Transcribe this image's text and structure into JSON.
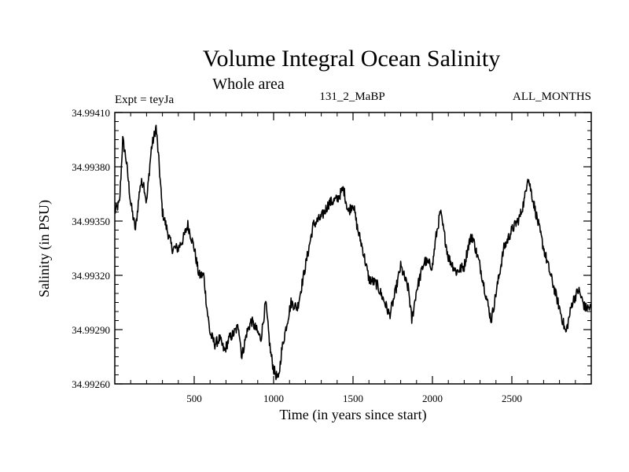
{
  "chart_data": {
    "type": "line",
    "title": "Volume Integral Ocean Salinity",
    "subtitle": "Whole area",
    "experiment": "Expt = teyJa",
    "run_label": "131_2_MaBP",
    "period_label": "ALL_MONTHS",
    "xlabel": "Time (in years since start)",
    "ylabel": "Salinity (in PSU)",
    "xlim": [
      0,
      3000
    ],
    "ylim": [
      34.9926,
      34.9941
    ],
    "x_ticks": [
      500,
      1000,
      1500,
      2000,
      2500
    ],
    "x_tick_labels": [
      "500",
      "1000",
      "1500",
      "2000",
      "2500"
    ],
    "y_ticks": [
      34.9926,
      34.9929,
      34.9932,
      34.9935,
      34.9938,
      34.9941
    ],
    "y_tick_labels": [
      "34.99260",
      "34.99290",
      "34.99320",
      "34.99350",
      "34.99380",
      "34.99410"
    ],
    "grid": false,
    "series": [
      {
        "name": "Salinity",
        "x": [
          0,
          30,
          50,
          70,
          100,
          130,
          160,
          180,
          200,
          230,
          260,
          280,
          300,
          330,
          360,
          400,
          430,
          460,
          500,
          530,
          560,
          580,
          600,
          630,
          660,
          690,
          720,
          750,
          780,
          800,
          830,
          860,
          890,
          920,
          950,
          980,
          1000,
          1030,
          1050,
          1080,
          1110,
          1150,
          1200,
          1250,
          1300,
          1350,
          1400,
          1440,
          1470,
          1500,
          1530,
          1560,
          1600,
          1650,
          1700,
          1730,
          1760,
          1800,
          1850,
          1870,
          1900,
          1950,
          2000,
          2020,
          2050,
          2080,
          2100,
          2150,
          2200,
          2230,
          2250,
          2300,
          2330,
          2370,
          2400,
          2450,
          2500,
          2550,
          2580,
          2600,
          2650,
          2700,
          2750,
          2800,
          2840,
          2880,
          2920,
          2960,
          3000
        ],
        "values": [
          34.99355,
          34.9936,
          34.99395,
          34.99385,
          34.9936,
          34.99345,
          34.9937,
          34.99372,
          34.9936,
          34.9939,
          34.99402,
          34.9938,
          34.99355,
          34.99345,
          34.99335,
          34.99335,
          34.9934,
          34.99348,
          34.99335,
          34.9932,
          34.9932,
          34.99302,
          34.99288,
          34.99282,
          34.99285,
          34.99278,
          34.99285,
          34.99288,
          34.99292,
          34.99275,
          34.99288,
          34.99295,
          34.9929,
          34.99285,
          34.99305,
          34.99278,
          34.99268,
          34.99262,
          34.99278,
          34.99292,
          34.99305,
          34.99302,
          34.99325,
          34.99348,
          34.99352,
          34.9936,
          34.99362,
          34.99368,
          34.99355,
          34.9936,
          34.99345,
          34.99335,
          34.99318,
          34.99315,
          34.99305,
          34.99298,
          34.99308,
          34.99325,
          34.99312,
          34.99295,
          34.99312,
          34.99328,
          34.99325,
          34.9934,
          34.99355,
          34.9934,
          34.9933,
          34.99322,
          34.99325,
          34.99338,
          34.99342,
          34.99325,
          34.99312,
          34.99295,
          34.9931,
          34.99335,
          34.99345,
          34.99352,
          34.99362,
          34.99375,
          34.99355,
          34.99335,
          34.99318,
          34.99302,
          34.99288,
          34.99305,
          34.99312,
          34.99302,
          34.99302
        ]
      }
    ]
  }
}
